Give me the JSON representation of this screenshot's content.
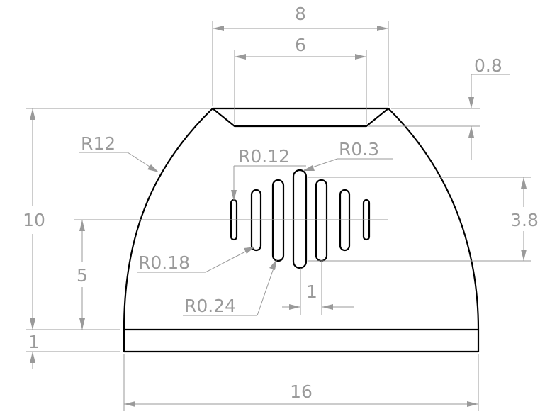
{
  "colors": {
    "geometry": "#000000",
    "dimension": "#9a9a9a",
    "background": "#ffffff"
  },
  "dimensions": {
    "top_outer_width": "8",
    "top_inner_width": "6",
    "chamfer_depth": "0.8",
    "outer_radius": "R12",
    "slot_radius_end": "R0.12",
    "slot_radius_center": "R0.3",
    "slot_radius_second": "R0.18",
    "slot_radius_third": "R0.24",
    "total_height": "10",
    "slot_center_height": "5",
    "slot_span_height": "3.8",
    "slot_pitch": "1",
    "base_thickness": "1",
    "base_width": "16"
  }
}
